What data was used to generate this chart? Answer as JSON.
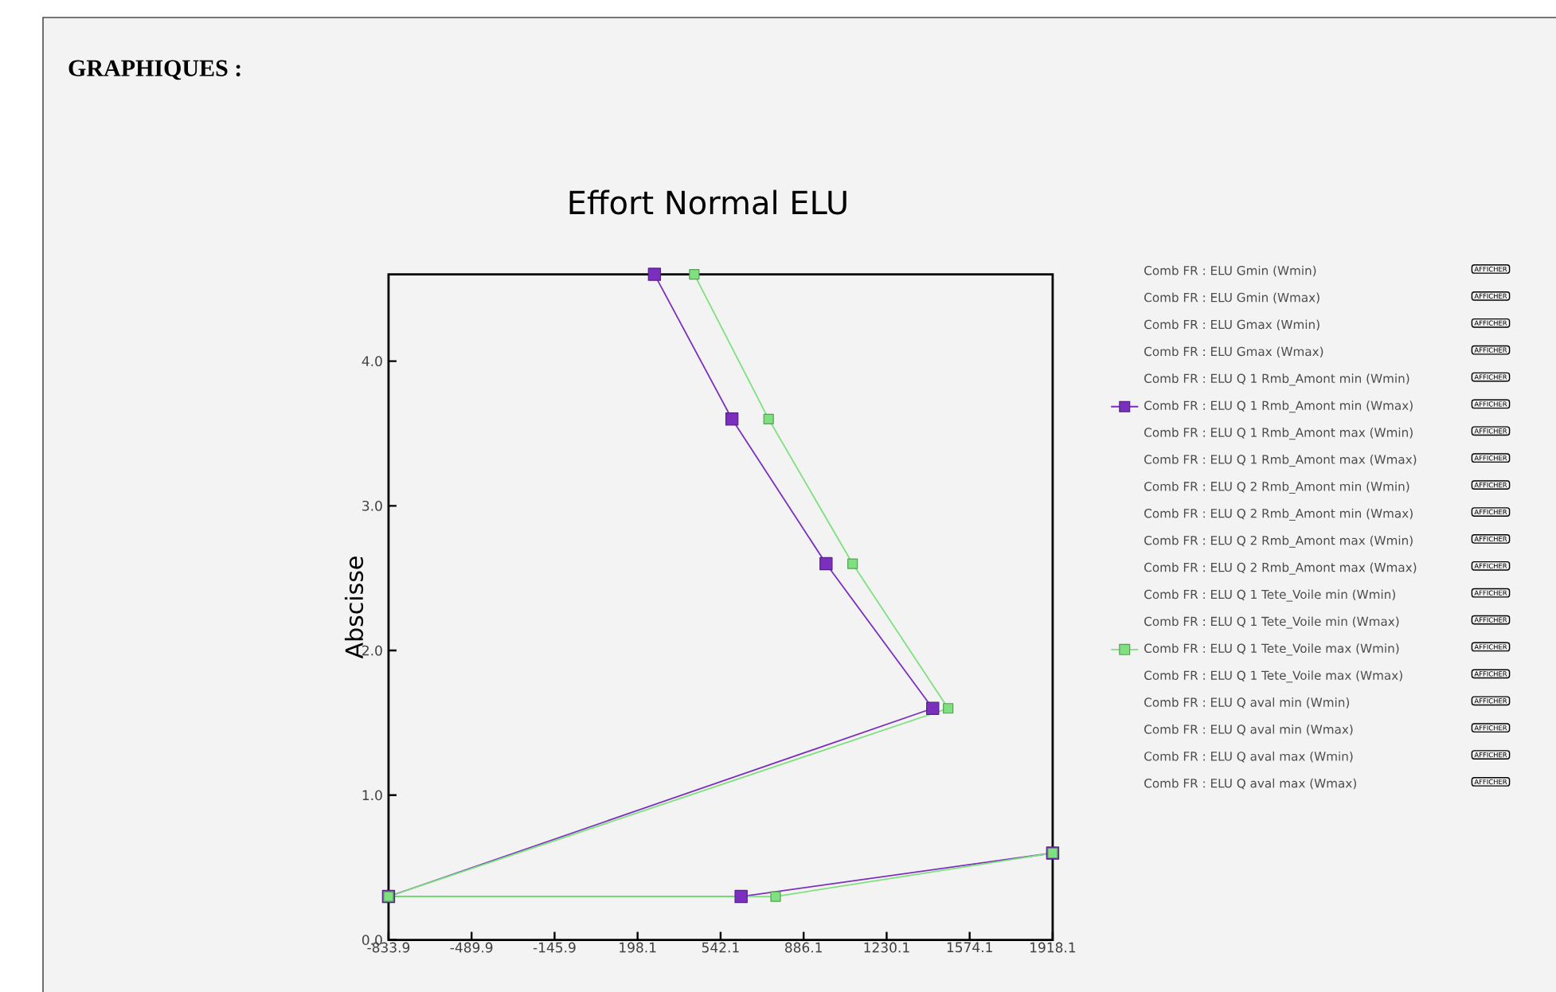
{
  "chart_data": {
    "type": "line",
    "title": "Effort Normal ELU",
    "ylabel": "Abscisse",
    "xlim": [
      -833.9,
      1918.1
    ],
    "xticks": [
      -833.9,
      -489.9,
      -145.9,
      198.1,
      542.1,
      886.1,
      1230.1,
      1574.1,
      1918.1
    ],
    "ylim": [
      0,
      4.6
    ],
    "yticks": [
      {
        "value": 0,
        "label": "0.0"
      },
      {
        "value": 1,
        "label": "1.0"
      },
      {
        "value": 2,
        "label": "2.0"
      },
      {
        "value": 3,
        "label": "3.0"
      },
      {
        "value": 4,
        "label": "4.0"
      }
    ],
    "marker": "square",
    "line_style": "solid",
    "grid": false,
    "legend": "right",
    "series": [
      {
        "name": "Comb FR : ELU Gmin (Wmin)"
      },
      {
        "name": "Comb FR : ELU Gmin (Wmax)"
      },
      {
        "name": "Comb FR : ELU Gmax (Wmin)"
      },
      {
        "name": "Comb FR : ELU Gmax (Wmax)"
      },
      {
        "name": "Comb FR : ELU Q 1 Rmb_Amont min (Wmin)"
      },
      {
        "name": "Comb FR : ELU Q 1 Rmb_Amont min (Wmax)",
        "color": "#7b2fbf",
        "x": [
          268,
          589,
          979,
          1421,
          -833.9,
          627,
          1918.1
        ],
        "values": [
          4.6,
          3.6,
          2.6,
          1.6,
          0.3,
          0.3,
          0.6
        ]
      },
      {
        "name": "Comb FR : ELU Q 1 Rmb_Amont max (Wmin)"
      },
      {
        "name": "Comb FR : ELU Q 1 Rmb_Amont max (Wmax)"
      },
      {
        "name": "Comb FR : ELU Q 2 Rmb_Amont min (Wmin)"
      },
      {
        "name": "Comb FR : ELU Q 2 Rmb_Amont min (Wmax)"
      },
      {
        "name": "Comb FR : ELU Q 2 Rmb_Amont max (Wmin)"
      },
      {
        "name": "Comb FR : ELU Q 2 Rmb_Amont max (Wmax)"
      },
      {
        "name": "Comb FR : ELU Q 1 Tete_Voile min (Wmin)"
      },
      {
        "name": "Comb FR : ELU Q 1 Tete_Voile min (Wmax)"
      },
      {
        "name": "Comb FR : ELU Q 1 Tete_Voile max (Wmin)",
        "color": "#7fe07f",
        "x": [
          433,
          741,
          1089,
          1485,
          -833.9,
          770,
          1918.1
        ],
        "values": [
          4.6,
          3.6,
          2.6,
          1.6,
          0.3,
          0.3,
          0.6
        ]
      },
      {
        "name": "Comb FR : ELU Q 1 Tete_Voile max (Wmax)"
      },
      {
        "name": "Comb FR : ELU Q aval min (Wmin)"
      },
      {
        "name": "Comb FR : ELU Q aval min (Wmax)"
      },
      {
        "name": "Comb FR : ELU Q aval max (Wmin)"
      },
      {
        "name": "Comb FR : ELU Q aval max (Wmax)"
      }
    ],
    "annotations": [
      "GRAPHIQUES :",
      "AFFICHER",
      "AFFICHER",
      "AFFICHER",
      "AFFICHER",
      "AFFICHER",
      "AFFICHER",
      "AFFICHER",
      "AFFICHER",
      "AFFICHER",
      "AFFICHER",
      "AFFICHER",
      "AFFICHER",
      "AFFICHER",
      "AFFICHER",
      "AFFICHER",
      "AFFICHER",
      "AFFICHER",
      "AFFICHER",
      "AFFICHER",
      "AFFICHER"
    ]
  }
}
